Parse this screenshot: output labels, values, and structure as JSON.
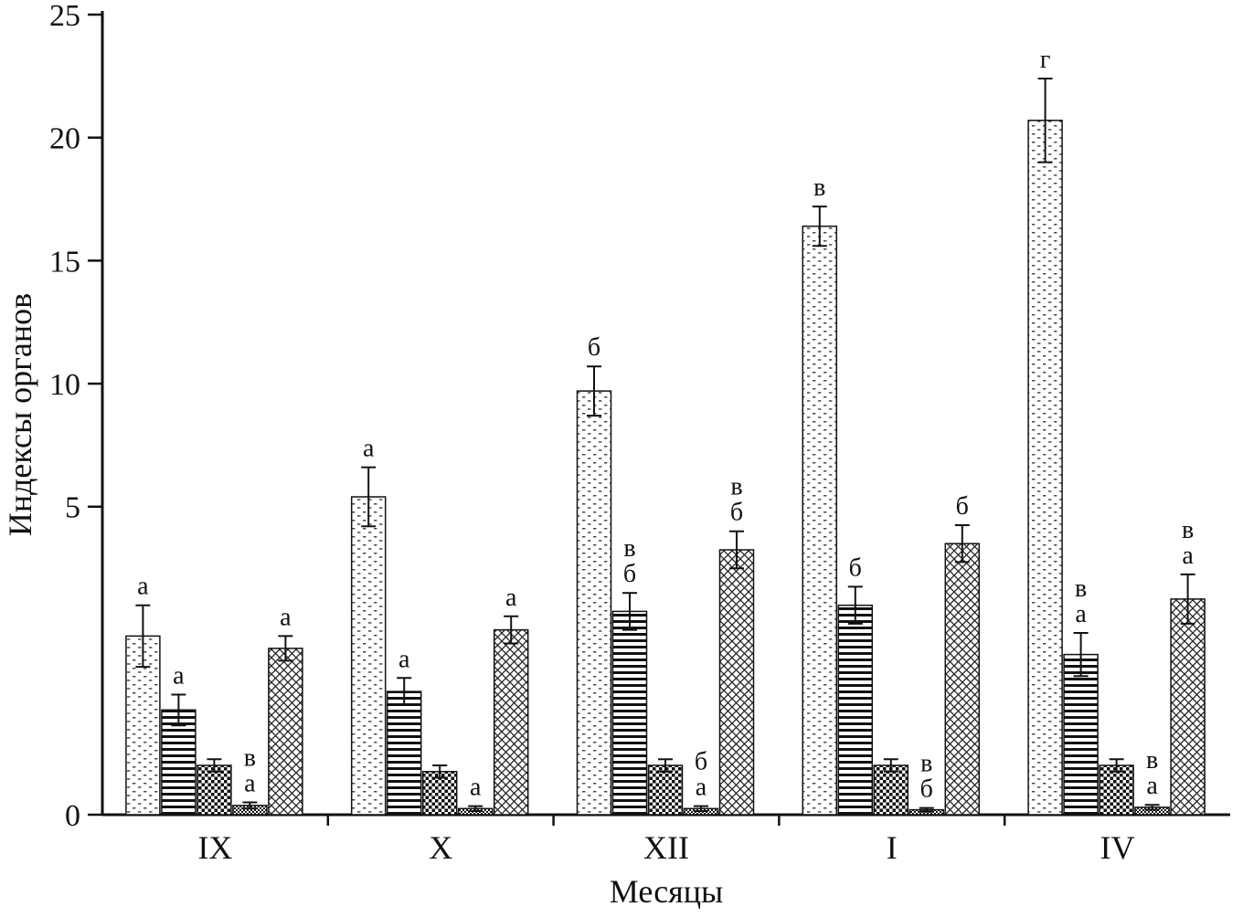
{
  "chart_data": {
    "type": "bar",
    "title": "",
    "xlabel": "Месяцы",
    "ylabel": "Индексы органов",
    "categories": [
      "IX",
      "X",
      "XII",
      "I",
      "IV"
    ],
    "y_axis": {
      "ticks": [
        0,
        5,
        10,
        15,
        20,
        25
      ],
      "range": [
        0,
        25
      ],
      "piecewise_break_value": 5,
      "lower_segment_fraction": 0.385
    },
    "grid": false,
    "legend": "none",
    "error_bars": true,
    "series": [
      {
        "name": "dotted-pattern-series",
        "pattern": "dotted",
        "values": [
          2.9,
          5.4,
          9.7,
          16.4,
          20.7
        ],
        "errors": [
          0.5,
          1.2,
          1.0,
          0.8,
          1.7
        ],
        "letters": [
          [
            "а"
          ],
          [
            "а"
          ],
          [
            "б"
          ],
          [
            "в"
          ],
          [
            "г"
          ]
        ]
      },
      {
        "name": "horizontal-lines-pattern-series",
        "pattern": "hlines",
        "values": [
          1.7,
          2.0,
          3.3,
          3.4,
          2.6
        ],
        "errors": [
          0.25,
          0.22,
          0.3,
          0.3,
          0.35
        ],
        "letters": [
          [
            "а"
          ],
          [
            "а"
          ],
          [
            "в",
            "б"
          ],
          [
            "б"
          ],
          [
            "в",
            "а"
          ]
        ]
      },
      {
        "name": "checkerboard-pattern-series",
        "pattern": "checker",
        "values": [
          0.8,
          0.7,
          0.8,
          0.8,
          0.8
        ],
        "errors": [
          0.1,
          0.1,
          0.1,
          0.1,
          0.1
        ],
        "letters": [
          [],
          [],
          [],
          [],
          []
        ]
      },
      {
        "name": "fine-grid-pattern-series",
        "pattern": "grid",
        "values": [
          0.15,
          0.1,
          0.1,
          0.08,
          0.12
        ],
        "errors": [
          0.05,
          0.04,
          0.04,
          0.03,
          0.04
        ],
        "letters": [
          [
            "в",
            "а"
          ],
          [
            "а"
          ],
          [
            "б",
            "а"
          ],
          [
            "в",
            "б"
          ],
          [
            "в",
            "а"
          ]
        ]
      },
      {
        "name": "crosshatch-pattern-series",
        "pattern": "crosshatch",
        "values": [
          2.7,
          3.0,
          4.3,
          4.4,
          3.5
        ],
        "errors": [
          0.2,
          0.22,
          0.3,
          0.3,
          0.4
        ],
        "letters": [
          [
            "а"
          ],
          [
            "а"
          ],
          [
            "в",
            "б"
          ],
          [
            "б"
          ],
          [
            "в",
            "а"
          ]
        ]
      }
    ]
  },
  "colors": {
    "ink": "#111111",
    "background": "#ffffff"
  }
}
